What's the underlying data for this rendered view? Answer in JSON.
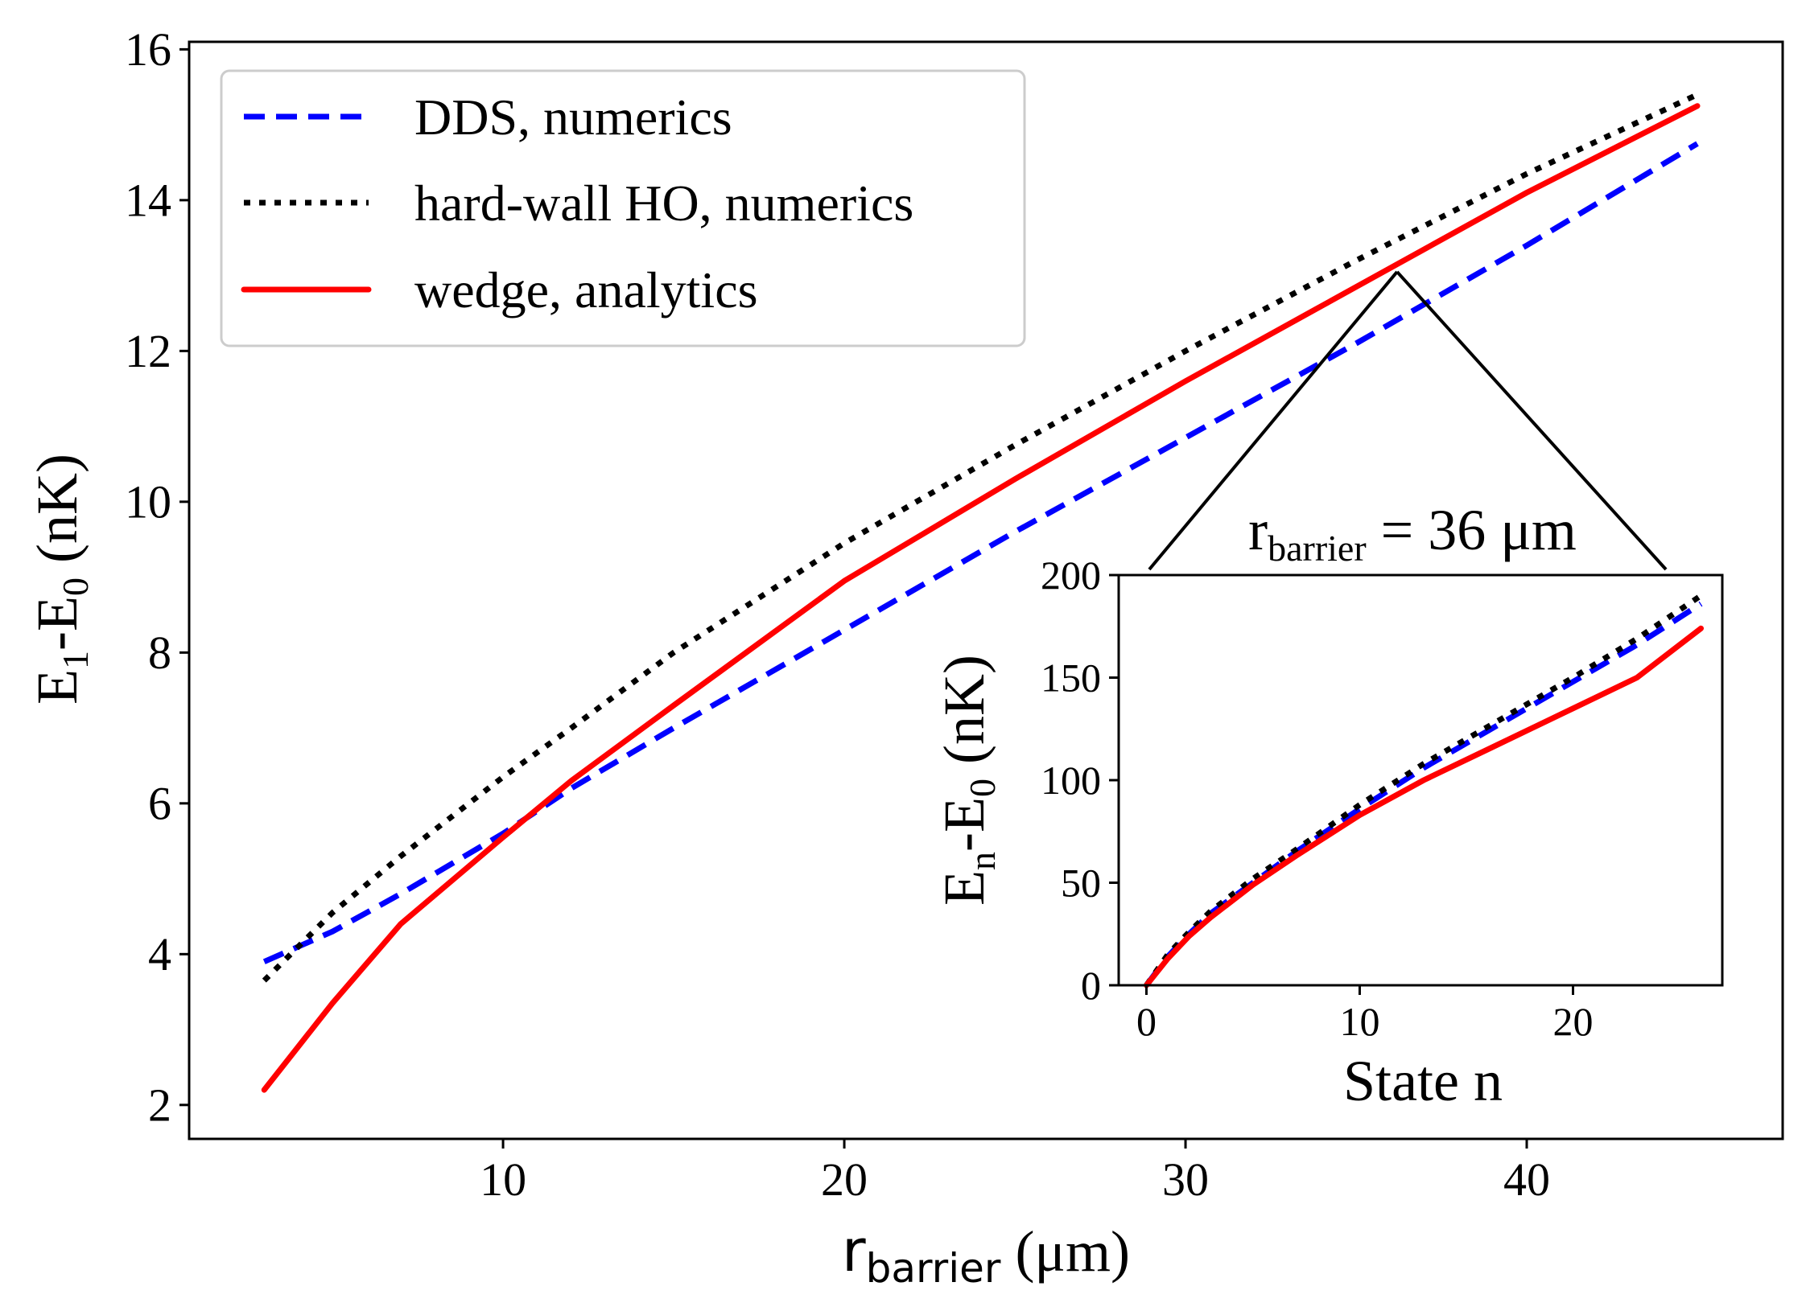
{
  "chart_data": [
    {
      "id": "main",
      "type": "line",
      "ylabel_parts": [
        "E",
        "1",
        "-E",
        "0",
        " (nK)"
      ],
      "xlabel_parts": [
        "r",
        "barrier",
        " (μm)"
      ],
      "xlim": [
        0.8,
        47.5
      ],
      "ylim": [
        1.55,
        16.1
      ],
      "xticks": [
        "10",
        "20",
        "30",
        "40"
      ],
      "yticks": [
        "2",
        "4",
        "6",
        "8",
        "10",
        "12",
        "14",
        "16"
      ],
      "series": [
        {
          "name": "DDS, numerics",
          "style": "dashed",
          "color": "#0000ff",
          "x": [
            3,
            5,
            7,
            10,
            12,
            15,
            20,
            25,
            30,
            35,
            40,
            45
          ],
          "y": [
            3.9,
            4.3,
            4.8,
            5.6,
            6.2,
            7.0,
            8.3,
            9.6,
            10.85,
            12.1,
            13.4,
            14.75
          ]
        },
        {
          "name": "hard-wall HO, numerics",
          "style": "dotted",
          "color": "#000000",
          "x": [
            3,
            5,
            7,
            10,
            12,
            15,
            20,
            25,
            30,
            35,
            40,
            45
          ],
          "y": [
            3.65,
            4.55,
            5.3,
            6.35,
            7.0,
            8.0,
            9.45,
            10.75,
            12.0,
            13.2,
            14.35,
            15.4
          ]
        },
        {
          "name": "wedge, analytics",
          "style": "solid",
          "color": "#ff0000",
          "x": [
            3,
            5,
            7,
            10,
            12,
            15,
            20,
            25,
            30,
            35,
            40,
            45
          ],
          "y": [
            2.2,
            3.35,
            4.4,
            5.55,
            6.3,
            7.3,
            8.95,
            10.3,
            11.6,
            12.85,
            14.1,
            15.25
          ]
        }
      ],
      "annotation": {
        "point": [
          36.2,
          13.05
        ]
      }
    },
    {
      "id": "inset",
      "type": "line",
      "title_parts": [
        "r",
        "barrier",
        " = 36 μm"
      ],
      "ylabel_parts": [
        "E",
        "n",
        "-E",
        "0",
        " (nK)"
      ],
      "xlabel": "State n",
      "xlim": [
        -1.3,
        27.0
      ],
      "ylim": [
        0,
        200
      ],
      "xticks": [
        "0",
        "10",
        "20"
      ],
      "yticks": [
        "0",
        "50",
        "100",
        "150",
        "200"
      ],
      "series": [
        {
          "name": "DDS, numerics",
          "style": "dashed",
          "color": "#0000ff",
          "x": [
            0,
            1,
            2,
            3,
            5,
            7,
            10,
            13,
            16,
            20,
            23,
            26
          ],
          "y": [
            0,
            14,
            25,
            35,
            50,
            65,
            86,
            106,
            124,
            148,
            166,
            186
          ]
        },
        {
          "name": "hard-wall HO, numerics",
          "style": "dotted",
          "color": "#000000",
          "x": [
            0,
            1,
            2,
            3,
            5,
            7,
            10,
            13,
            16,
            20,
            23,
            26
          ],
          "y": [
            0,
            15,
            26,
            36,
            52,
            66,
            88,
            108,
            126,
            150,
            169,
            190
          ]
        },
        {
          "name": "wedge, analytics",
          "style": "solid",
          "color": "#ff0000",
          "x": [
            0,
            1,
            2,
            3,
            5,
            7,
            10,
            13,
            16,
            20,
            23,
            26
          ],
          "y": [
            0,
            13,
            24,
            33,
            49,
            63,
            83,
            100,
            115,
            135,
            150,
            174
          ]
        }
      ]
    }
  ],
  "legend": [
    {
      "label": "DDS, numerics",
      "style": "dashed",
      "color": "#0000ff"
    },
    {
      "label": "hard-wall HO, numerics",
      "style": "dotted",
      "color": "#000000"
    },
    {
      "label": "wedge, analytics",
      "style": "solid",
      "color": "#ff0000"
    }
  ]
}
